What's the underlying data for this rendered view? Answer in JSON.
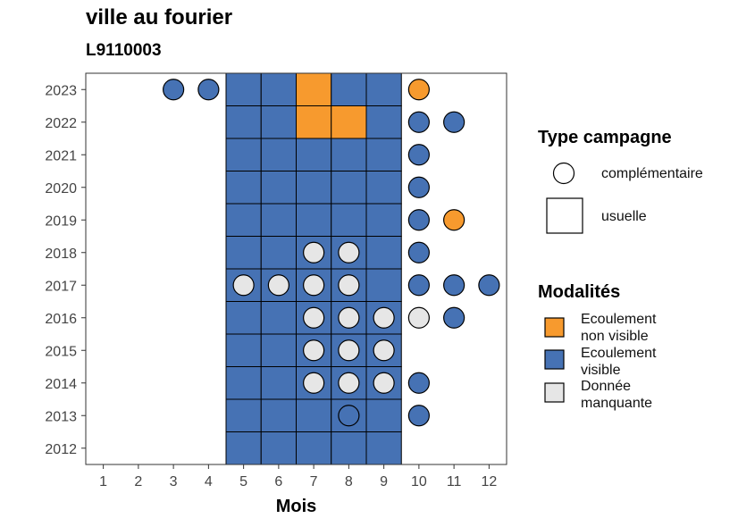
{
  "chart_data": {
    "type": "heatmap",
    "title": "ville au fourier",
    "subtitle": "L9110003",
    "xlabel": "Mois",
    "ylabel": "",
    "x_ticks": [
      1,
      2,
      3,
      4,
      5,
      6,
      7,
      8,
      9,
      10,
      11,
      12
    ],
    "y_ticks": [
      2012,
      2013,
      2014,
      2015,
      2016,
      2017,
      2018,
      2019,
      2020,
      2021,
      2022,
      2023
    ],
    "xlim": [
      0.5,
      12.5
    ],
    "ylim": [
      2011.5,
      2023.5
    ],
    "colors": {
      "Ecoulement non visible": "#f79a2e",
      "Ecoulement visible": "#4672b4",
      "Donnée manquante": "#e6e6e6"
    },
    "legend_campagne": {
      "title": "Type campagne",
      "items": [
        {
          "label": "complémentaire",
          "shape": "circle"
        },
        {
          "label": "usuelle",
          "shape": "square"
        }
      ]
    },
    "legend_modalites": {
      "title": "Modalités",
      "items": [
        {
          "label_line1": "Ecoulement",
          "label_line2": "non visible",
          "key": "Ecoulement non visible"
        },
        {
          "label_line1": "Ecoulement",
          "label_line2": "visible",
          "key": "Ecoulement visible"
        },
        {
          "label_line1": "Donnée",
          "label_line2": "manquante",
          "key": "Donnée manquante"
        }
      ]
    },
    "usuelle": [
      {
        "year": 2023,
        "values": {
          "5": "Ecoulement visible",
          "6": "Ecoulement visible",
          "7": "Ecoulement non visible",
          "8": "Ecoulement visible",
          "9": "Ecoulement visible"
        }
      },
      {
        "year": 2022,
        "values": {
          "5": "Ecoulement visible",
          "6": "Ecoulement visible",
          "7": "Ecoulement non visible",
          "8": "Ecoulement non visible",
          "9": "Ecoulement visible"
        }
      },
      {
        "year": 2021,
        "values": {
          "5": "Ecoulement visible",
          "6": "Ecoulement visible",
          "7": "Ecoulement visible",
          "8": "Ecoulement visible",
          "9": "Ecoulement visible"
        }
      },
      {
        "year": 2020,
        "values": {
          "5": "Ecoulement visible",
          "6": "Ecoulement visible",
          "7": "Ecoulement visible",
          "8": "Ecoulement visible",
          "9": "Ecoulement visible"
        }
      },
      {
        "year": 2019,
        "values": {
          "5": "Ecoulement visible",
          "6": "Ecoulement visible",
          "7": "Ecoulement visible",
          "8": "Ecoulement visible",
          "9": "Ecoulement visible"
        }
      },
      {
        "year": 2018,
        "values": {
          "5": "Ecoulement visible",
          "6": "Ecoulement visible",
          "7": "Ecoulement visible",
          "8": "Ecoulement visible",
          "9": "Ecoulement visible"
        }
      },
      {
        "year": 2017,
        "values": {
          "5": "Ecoulement visible",
          "6": "Ecoulement visible",
          "7": "Ecoulement visible",
          "8": "Ecoulement visible",
          "9": "Ecoulement visible"
        }
      },
      {
        "year": 2016,
        "values": {
          "5": "Ecoulement visible",
          "6": "Ecoulement visible",
          "7": "Ecoulement visible",
          "8": "Ecoulement visible",
          "9": "Ecoulement visible"
        }
      },
      {
        "year": 2015,
        "values": {
          "5": "Ecoulement visible",
          "6": "Ecoulement visible",
          "7": "Ecoulement visible",
          "8": "Ecoulement visible",
          "9": "Ecoulement visible"
        }
      },
      {
        "year": 2014,
        "values": {
          "5": "Ecoulement visible",
          "6": "Ecoulement visible",
          "7": "Ecoulement visible",
          "8": "Ecoulement visible",
          "9": "Ecoulement visible"
        }
      },
      {
        "year": 2013,
        "values": {
          "5": "Ecoulement visible",
          "6": "Ecoulement visible",
          "7": "Ecoulement visible",
          "8": "Ecoulement visible",
          "9": "Ecoulement visible"
        }
      },
      {
        "year": 2012,
        "values": {
          "5": "Ecoulement visible",
          "6": "Ecoulement visible",
          "7": "Ecoulement visible",
          "8": "Ecoulement visible",
          "9": "Ecoulement visible"
        }
      }
    ],
    "complementaire": [
      {
        "year": 2023,
        "month": 3,
        "value": "Ecoulement visible"
      },
      {
        "year": 2023,
        "month": 4,
        "value": "Ecoulement visible"
      },
      {
        "year": 2023,
        "month": 10,
        "value": "Ecoulement non visible"
      },
      {
        "year": 2022,
        "month": 10,
        "value": "Ecoulement visible"
      },
      {
        "year": 2022,
        "month": 11,
        "value": "Ecoulement visible"
      },
      {
        "year": 2021,
        "month": 10,
        "value": "Ecoulement visible"
      },
      {
        "year": 2020,
        "month": 10,
        "value": "Ecoulement visible"
      },
      {
        "year": 2019,
        "month": 10,
        "value": "Ecoulement visible"
      },
      {
        "year": 2019,
        "month": 11,
        "value": "Ecoulement non visible"
      },
      {
        "year": 2018,
        "month": 7,
        "value": "Donnée manquante"
      },
      {
        "year": 2018,
        "month": 8,
        "value": "Donnée manquante"
      },
      {
        "year": 2018,
        "month": 10,
        "value": "Ecoulement visible"
      },
      {
        "year": 2017,
        "month": 5,
        "value": "Donnée manquante"
      },
      {
        "year": 2017,
        "month": 6,
        "value": "Donnée manquante"
      },
      {
        "year": 2017,
        "month": 7,
        "value": "Donnée manquante"
      },
      {
        "year": 2017,
        "month": 8,
        "value": "Donnée manquante"
      },
      {
        "year": 2017,
        "month": 10,
        "value": "Ecoulement visible"
      },
      {
        "year": 2017,
        "month": 11,
        "value": "Ecoulement visible"
      },
      {
        "year": 2017,
        "month": 12,
        "value": "Ecoulement visible"
      },
      {
        "year": 2016,
        "month": 7,
        "value": "Donnée manquante"
      },
      {
        "year": 2016,
        "month": 8,
        "value": "Donnée manquante"
      },
      {
        "year": 2016,
        "month": 9,
        "value": "Donnée manquante"
      },
      {
        "year": 2016,
        "month": 10,
        "value": "Donnée manquante"
      },
      {
        "year": 2016,
        "month": 11,
        "value": "Ecoulement visible"
      },
      {
        "year": 2015,
        "month": 7,
        "value": "Donnée manquante"
      },
      {
        "year": 2015,
        "month": 8,
        "value": "Donnée manquante"
      },
      {
        "year": 2015,
        "month": 9,
        "value": "Donnée manquante"
      },
      {
        "year": 2014,
        "month": 7,
        "value": "Donnée manquante"
      },
      {
        "year": 2014,
        "month": 8,
        "value": "Donnée manquante"
      },
      {
        "year": 2014,
        "month": 9,
        "value": "Donnée manquante"
      },
      {
        "year": 2014,
        "month": 10,
        "value": "Ecoulement visible"
      },
      {
        "year": 2013,
        "month": 8,
        "value": "Ecoulement visible"
      },
      {
        "year": 2013,
        "month": 10,
        "value": "Ecoulement visible"
      }
    ]
  }
}
